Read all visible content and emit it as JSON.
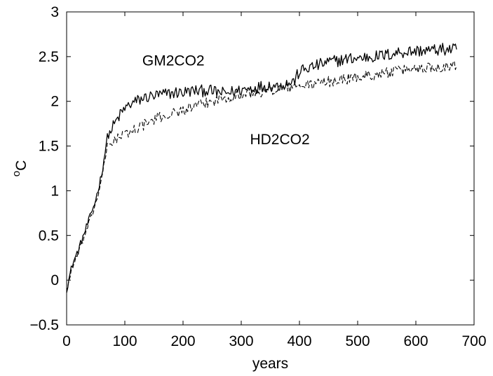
{
  "chart_data": {
    "type": "line",
    "title": "",
    "xlabel": "years",
    "ylabel_superscript": "o",
    "ylabel_main": "C",
    "xlim": [
      0,
      700
    ],
    "ylim": [
      -0.5,
      3
    ],
    "xticks": [
      0,
      100,
      200,
      300,
      400,
      500,
      600,
      700
    ],
    "xtick_labels": [
      "0",
      "100",
      "200",
      "300",
      "400",
      "500",
      "600",
      "700"
    ],
    "yticks": [
      -0.5,
      0,
      0.5,
      1,
      1.5,
      2,
      2.5,
      3
    ],
    "ytick_labels": [
      "−0.5",
      "0",
      "0.5",
      "1",
      "1.5",
      "2",
      "2.5",
      "3"
    ],
    "grid": false,
    "annotations": [
      {
        "text": "GM2CO2",
        "x": 130,
        "y": 2.4
      },
      {
        "text": "HD2CO2",
        "x": 315,
        "y": 1.52
      }
    ],
    "series": [
      {
        "style": "solid",
        "color": "#000000",
        "x": [
          0,
          10,
          20,
          30,
          40,
          50,
          60,
          70,
          80,
          90,
          100,
          110,
          120,
          130,
          140,
          150,
          160,
          170,
          180,
          190,
          200,
          210,
          220,
          230,
          240,
          250,
          260,
          270,
          280,
          290,
          300,
          310,
          320,
          330,
          340,
          350,
          360,
          370,
          380,
          390,
          400,
          410,
          420,
          430,
          440,
          450,
          460,
          470,
          480,
          490,
          500,
          510,
          520,
          530,
          540,
          550,
          560,
          570,
          580,
          590,
          600,
          610,
          620,
          630,
          640,
          650,
          660,
          670
        ],
        "values": [
          -0.1,
          0.18,
          0.33,
          0.52,
          0.7,
          0.9,
          1.18,
          1.6,
          1.72,
          1.83,
          1.92,
          1.97,
          2.0,
          2.03,
          2.05,
          2.06,
          2.07,
          2.08,
          2.09,
          2.1,
          2.1,
          2.11,
          2.12,
          2.11,
          2.13,
          2.11,
          2.1,
          2.09,
          2.1,
          2.11,
          2.13,
          2.14,
          2.15,
          2.16,
          2.17,
          2.18,
          2.17,
          2.19,
          2.2,
          2.22,
          2.33,
          2.36,
          2.38,
          2.4,
          2.42,
          2.44,
          2.45,
          2.46,
          2.47,
          2.48,
          2.48,
          2.49,
          2.5,
          2.5,
          2.51,
          2.52,
          2.53,
          2.55,
          2.55,
          2.56,
          2.56,
          2.57,
          2.57,
          2.57,
          2.58,
          2.58,
          2.58,
          2.58
        ],
        "noise": 0.07
      },
      {
        "style": "dashed",
        "color": "#000000",
        "x": [
          0,
          10,
          20,
          30,
          40,
          50,
          60,
          70,
          80,
          90,
          100,
          110,
          120,
          130,
          140,
          150,
          160,
          170,
          180,
          190,
          200,
          210,
          220,
          230,
          240,
          250,
          260,
          270,
          280,
          290,
          300,
          310,
          320,
          330,
          340,
          350,
          360,
          370,
          380,
          390,
          400,
          410,
          420,
          430,
          440,
          450,
          460,
          470,
          480,
          490,
          500,
          510,
          520,
          530,
          540,
          550,
          560,
          570,
          580,
          590,
          600,
          610,
          620,
          630,
          640,
          650,
          660,
          670
        ],
        "values": [
          -0.12,
          0.15,
          0.3,
          0.48,
          0.66,
          0.86,
          1.12,
          1.5,
          1.56,
          1.6,
          1.63,
          1.66,
          1.7,
          1.73,
          1.76,
          1.79,
          1.82,
          1.84,
          1.86,
          1.88,
          1.9,
          1.92,
          1.94,
          1.96,
          1.98,
          2.0,
          2.02,
          2.04,
          2.05,
          2.06,
          2.07,
          2.08,
          2.09,
          2.1,
          2.11,
          2.12,
          2.13,
          2.14,
          2.15,
          2.16,
          2.17,
          2.18,
          2.19,
          2.2,
          2.21,
          2.22,
          2.23,
          2.24,
          2.25,
          2.26,
          2.27,
          2.28,
          2.29,
          2.3,
          2.31,
          2.32,
          2.33,
          2.34,
          2.35,
          2.36,
          2.37,
          2.37,
          2.38,
          2.38,
          2.39,
          2.39,
          2.4,
          2.4
        ],
        "noise": 0.06
      }
    ]
  }
}
